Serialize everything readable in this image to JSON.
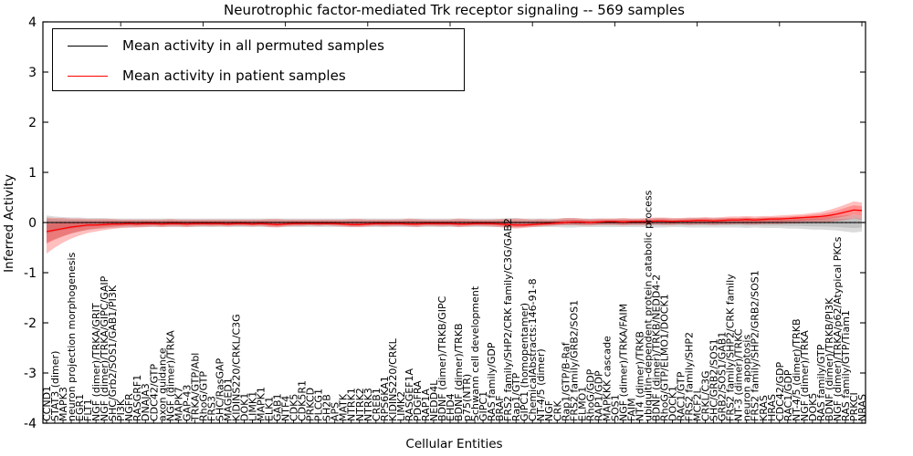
{
  "figure": {
    "title": "Neurotrophic factor-mediated Trk receptor signaling -- 569 samples",
    "xlabel": "Cellular Entities",
    "ylabel": "Inferred Activity",
    "legend": [
      {
        "label": "Mean activity in all permuted samples",
        "color": "#000000"
      },
      {
        "label": "Mean activity in patient samples",
        "color": "#ff0000"
      }
    ]
  },
  "chart_data": {
    "type": "line",
    "title": "Neurotrophic factor-mediated Trk receptor signaling -- 569 samples",
    "xlabel": "Cellular Entities",
    "ylabel": "Inferred Activity",
    "ylim": [
      -4,
      4
    ],
    "yticks": [
      4,
      3,
      2,
      1,
      0,
      -1,
      -2,
      -3,
      -4
    ],
    "grid": false,
    "legend_position": "upper left",
    "zero_line": {
      "style": "dotted",
      "color": "#000000"
    },
    "categories": [
      "CCND1",
      "STAT3 (dimer)",
      "MAPK3",
      "neuron projection morphogenesis",
      "EGR1",
      "FLT1",
      "NGF (dimer)/TRKA/GRIT",
      "NGF (dimer)/TRKA/GIPC/GAIP",
      "SHC/Grb2/SOS1/GAB1/PI3K",
      "PI3K",
      "NGFR",
      "RASGRF1",
      "DNAJA3",
      "CDC42/GTP",
      "axon guidance",
      "NGF (dimer)/TRKA",
      "MAPK7",
      "GAP-43",
      "TRKA/GTP/Abl",
      "RhoG/GTP",
      "FRS3",
      "SHC/RasGAP",
      "MAGED1",
      "KIDINS220/CRKL/C3G",
      "DOK1",
      "LIMK1",
      "MAPK1",
      "ELK1",
      "GAB1",
      "NTF4",
      "CDK5",
      "CDK5R1",
      "PRKCD",
      "PLCG1",
      "SH2B",
      "APS",
      "MATK",
      "NTRK1",
      "NTRK2",
      "NTRK3",
      "CREB1",
      "RPS6KA1",
      "KIDINS220/CRKL",
      "LIMK2",
      "RASGEF1A",
      "PDGFRA",
      "RAP1A",
      "NEDD4L",
      "BDNF (dimer)/TRKB/GIPC",
      "EHD4",
      "BDNF (dimer)/TRKB",
      "p75(NTR)",
      "Schwann cell development",
      "GIPC1",
      "RAS family/GDP",
      "BRAF",
      "FRS2 family/SHP2/CRK family/C3G/GAB2",
      "Rap1/GTP",
      "GIPC1 (homopentamer)",
      "ChemicalAbstracts:146-91-8",
      "NT-4/5 (dimer)",
      "NGF",
      "CRK",
      "Rap1/GTP/B-Raf",
      "FRS2 family/GRB2/SOS1",
      "ELMO1",
      "RhoG/GDP",
      "RAP1/GDP",
      "MAPKKK cascade",
      "SOS1",
      "NGF (dimer)/TRKA/FAIM",
      "FAIM",
      "NT4 (dimer)/TRKB",
      "ubiquitin-dependent protein catabolic process",
      "BDNF (dimer)/TRKB/NEDD4-2",
      "RhoG/GTP/ELMO1/DOCK1",
      "DOCK1",
      "RAC1/GTP",
      "FRS2 family/SHP2",
      "MCF2L",
      "CRKL/C3G",
      "SHC/GRB2/SOS1",
      "GRB2/SOS1/GAB1",
      "FRS2 family/SHP2/CRK family",
      "NT-3 (dimer)/TRKC",
      "neuron apoptosis",
      "FRS2 family/SHP2/GRB2/SOS1",
      "KRAS",
      "HRAS",
      "CDC42/GDP",
      "RAC1/GDP",
      "NT-4/5 (dimer)/TRKB",
      "NGF (dimer)/TRKA",
      "DOK5",
      "RAS family/GTP",
      "BDNF (dimer)/TRKB/PI3K",
      "NGF (dimer)/TRKA/p62/Atypical PKCs",
      "RAS family/GTP/Tiam1",
      "PRKCI",
      "NRAS"
    ],
    "series": [
      {
        "name": "Mean activity in all permuted samples",
        "color": "#000000",
        "style": "solid",
        "values": [
          0,
          0,
          0,
          0,
          0,
          0,
          0,
          0,
          0,
          0,
          0,
          0,
          0,
          0,
          0,
          0,
          0,
          0,
          0,
          0,
          0,
          0,
          0,
          0,
          0,
          0,
          0,
          0,
          0,
          0,
          0,
          0,
          0,
          0,
          0,
          0,
          0,
          0,
          0,
          0,
          0,
          0,
          0,
          0,
          0,
          0,
          0,
          0,
          0,
          0,
          0,
          0,
          0,
          0,
          0,
          0,
          0,
          0,
          0,
          0,
          0,
          0,
          0,
          0,
          0,
          0,
          0,
          0,
          0,
          0,
          0,
          0,
          0,
          0,
          0,
          0,
          0,
          0,
          0,
          0,
          0,
          0,
          0,
          0,
          0,
          0,
          0,
          0,
          0,
          0,
          0,
          0,
          0,
          0,
          0,
          0,
          0,
          0,
          0,
          0
        ]
      },
      {
        "name": "Mean activity in patient samples",
        "color": "#ff0000",
        "style": "solid",
        "values": [
          -0.18,
          -0.15,
          -0.12,
          -0.09,
          -0.07,
          -0.05,
          -0.05,
          -0.04,
          -0.03,
          -0.03,
          -0.02,
          -0.03,
          -0.02,
          -0.02,
          -0.03,
          -0.02,
          -0.02,
          -0.03,
          -0.02,
          -0.02,
          -0.02,
          -0.02,
          -0.03,
          -0.02,
          -0.02,
          -0.03,
          -0.02,
          -0.03,
          -0.04,
          -0.03,
          -0.02,
          -0.02,
          -0.02,
          -0.02,
          -0.02,
          -0.02,
          -0.03,
          -0.04,
          -0.04,
          -0.03,
          -0.02,
          -0.02,
          -0.02,
          -0.02,
          -0.03,
          -0.03,
          -0.02,
          -0.02,
          -0.02,
          -0.02,
          -0.03,
          -0.03,
          -0.02,
          -0.02,
          -0.02,
          -0.03,
          -0.04,
          -0.05,
          -0.05,
          -0.04,
          -0.03,
          -0.02,
          -0.01,
          0,
          0.01,
          0.01,
          0,
          0.01,
          0.02,
          0.02,
          0.01,
          0.02,
          0.02,
          0.02,
          0.03,
          0.03,
          0.02,
          0.03,
          0.03,
          0.04,
          0.04,
          0.03,
          0.04,
          0.05,
          0.05,
          0.06,
          0.05,
          0.06,
          0.07,
          0.07,
          0.08,
          0.09,
          0.1,
          0.11,
          0.12,
          0.14,
          0.17,
          0.21,
          0.25,
          0.24
        ]
      }
    ],
    "bands": [
      {
        "name": "permuted-samples-range",
        "color": "#888888",
        "opacity": 0.3,
        "inner_scale": 0.55,
        "hi": [
          0.14,
          0.12,
          0.11,
          0.1,
          0.1,
          0.09,
          0.09,
          0.09,
          0.08,
          0.08,
          0.08,
          0.08,
          0.08,
          0.08,
          0.08,
          0.08,
          0.08,
          0.08,
          0.08,
          0.08,
          0.08,
          0.08,
          0.08,
          0.08,
          0.08,
          0.08,
          0.08,
          0.08,
          0.08,
          0.08,
          0.08,
          0.08,
          0.08,
          0.08,
          0.08,
          0.08,
          0.08,
          0.08,
          0.08,
          0.08,
          0.08,
          0.08,
          0.08,
          0.08,
          0.08,
          0.08,
          0.08,
          0.08,
          0.08,
          0.08,
          0.08,
          0.08,
          0.08,
          0.08,
          0.08,
          0.08,
          0.09,
          0.09,
          0.08,
          0.08,
          0.08,
          0.08,
          0.08,
          0.09,
          0.09,
          0.08,
          0.08,
          0.08,
          0.08,
          0.08,
          0.08,
          0.08,
          0.08,
          0.08,
          0.09,
          0.09,
          0.08,
          0.08,
          0.09,
          0.09,
          0.09,
          0.09,
          0.09,
          0.09,
          0.09,
          0.1,
          0.09,
          0.1,
          0.1,
          0.1,
          0.1,
          0.11,
          0.11,
          0.12,
          0.12,
          0.12,
          0.13,
          0.14,
          0.15,
          0.14
        ],
        "lo": [
          -0.4,
          -0.33,
          -0.27,
          -0.22,
          -0.18,
          -0.15,
          -0.13,
          -0.12,
          -0.11,
          -0.1,
          -0.1,
          -0.09,
          -0.09,
          -0.09,
          -0.09,
          -0.09,
          -0.09,
          -0.09,
          -0.09,
          -0.09,
          -0.09,
          -0.09,
          -0.09,
          -0.09,
          -0.09,
          -0.09,
          -0.09,
          -0.09,
          -0.09,
          -0.09,
          -0.09,
          -0.09,
          -0.09,
          -0.09,
          -0.09,
          -0.09,
          -0.09,
          -0.09,
          -0.09,
          -0.09,
          -0.09,
          -0.09,
          -0.09,
          -0.09,
          -0.09,
          -0.09,
          -0.09,
          -0.09,
          -0.09,
          -0.09,
          -0.09,
          -0.09,
          -0.09,
          -0.09,
          -0.09,
          -0.09,
          -0.1,
          -0.1,
          -0.09,
          -0.09,
          -0.09,
          -0.09,
          -0.09,
          -0.1,
          -0.1,
          -0.09,
          -0.09,
          -0.09,
          -0.09,
          -0.09,
          -0.09,
          -0.09,
          -0.09,
          -0.09,
          -0.1,
          -0.1,
          -0.09,
          -0.09,
          -0.1,
          -0.1,
          -0.1,
          -0.1,
          -0.1,
          -0.1,
          -0.1,
          -0.11,
          -0.1,
          -0.11,
          -0.11,
          -0.11,
          -0.12,
          -0.12,
          -0.13,
          -0.14,
          -0.14,
          -0.15,
          -0.16,
          -0.18,
          -0.2,
          -0.18
        ]
      },
      {
        "name": "patient-samples-range",
        "color": "#ff0000",
        "opacity": 0.25,
        "inner_scale": 0.55,
        "hi": [
          0.1,
          0.09,
          0.09,
          0.08,
          0.08,
          0.07,
          0.07,
          0.07,
          0.07,
          0.06,
          0.06,
          0.06,
          0.06,
          0.06,
          0.06,
          0.07,
          0.06,
          0.06,
          0.06,
          0.06,
          0.06,
          0.06,
          0.06,
          0.06,
          0.06,
          0.06,
          0.06,
          0.07,
          0.07,
          0.06,
          0.06,
          0.06,
          0.06,
          0.06,
          0.06,
          0.06,
          0.06,
          0.07,
          0.07,
          0.06,
          0.06,
          0.06,
          0.06,
          0.06,
          0.08,
          0.07,
          0.06,
          0.06,
          0.06,
          0.06,
          0.08,
          0.07,
          0.06,
          0.06,
          0.06,
          0.07,
          0.07,
          0.08,
          0.07,
          0.06,
          0.07,
          0.06,
          0.07,
          0.09,
          0.09,
          0.08,
          0.07,
          0.08,
          0.08,
          0.08,
          0.09,
          0.08,
          0.08,
          0.09,
          0.1,
          0.1,
          0.09,
          0.09,
          0.1,
          0.1,
          0.11,
          0.1,
          0.11,
          0.12,
          0.12,
          0.13,
          0.12,
          0.13,
          0.13,
          0.14,
          0.15,
          0.16,
          0.17,
          0.19,
          0.21,
          0.25,
          0.3,
          0.36,
          0.42,
          0.4
        ],
        "lo": [
          -0.62,
          -0.5,
          -0.4,
          -0.32,
          -0.26,
          -0.21,
          -0.18,
          -0.15,
          -0.13,
          -0.11,
          -0.1,
          -0.1,
          -0.09,
          -0.08,
          -0.09,
          -0.08,
          -0.08,
          -0.09,
          -0.08,
          -0.07,
          -0.08,
          -0.07,
          -0.08,
          -0.07,
          -0.07,
          -0.08,
          -0.07,
          -0.09,
          -0.1,
          -0.08,
          -0.07,
          -0.07,
          -0.06,
          -0.07,
          -0.06,
          -0.07,
          -0.08,
          -0.09,
          -0.09,
          -0.08,
          -0.07,
          -0.08,
          -0.07,
          -0.07,
          -0.08,
          -0.09,
          -0.07,
          -0.07,
          -0.08,
          -0.07,
          -0.09,
          -0.08,
          -0.07,
          -0.07,
          -0.08,
          -0.09,
          -0.11,
          -0.12,
          -0.11,
          -0.09,
          -0.08,
          -0.07,
          -0.06,
          -0.05,
          -0.05,
          -0.06,
          -0.06,
          -0.05,
          -0.05,
          -0.05,
          -0.06,
          -0.05,
          -0.05,
          -0.05,
          -0.04,
          -0.05,
          -0.05,
          -0.04,
          -0.05,
          -0.04,
          -0.04,
          -0.05,
          -0.04,
          -0.04,
          -0.03,
          -0.04,
          -0.04,
          -0.03,
          -0.03,
          -0.03,
          -0.02,
          -0.02,
          -0.01,
          0,
          0,
          0.01,
          0.03,
          0.05,
          0.08,
          0.06
        ]
      }
    ]
  }
}
